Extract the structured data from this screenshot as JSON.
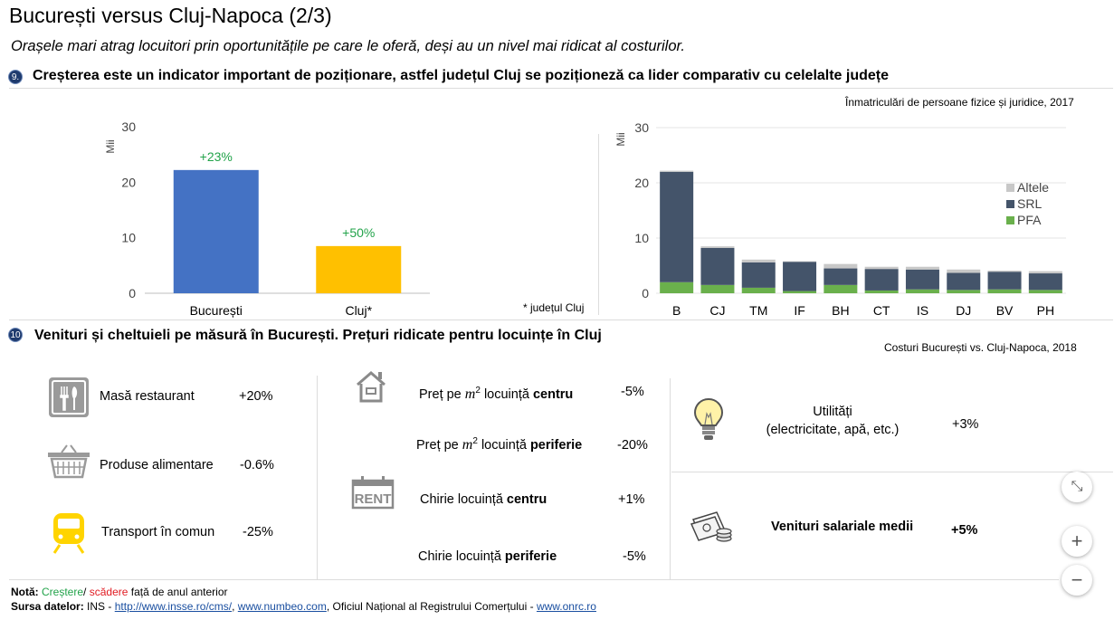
{
  "title": "București versus Cluj-Napoca (2/3)",
  "subtitle": "Orașele mari atrag locuitori prin oportunitățile pe care le oferă, deși au un nivel mai ridicat al costurilor.",
  "section9": {
    "badge": "9.",
    "heading": "Creșterea este un indicator important de poziționare, astfel județul Cluj se poziționeză ca lider comparativ cu celelalte județe",
    "source_note": "Înmatriculări de persoane fizice și juridice, 2017",
    "footnote": "* județul Cluj"
  },
  "chart_data": [
    {
      "type": "bar",
      "ylabel": "Mii",
      "ylim": [
        0,
        30
      ],
      "yticks": [
        "0",
        "10",
        "20",
        "30"
      ],
      "categories": [
        "București",
        "Cluj*"
      ],
      "values": [
        22.2,
        8.5
      ],
      "data_labels": [
        "+23%",
        "+50%"
      ],
      "colors": [
        "#4472c4",
        "#ffc000"
      ],
      "label_color": "#22a34a"
    },
    {
      "type": "bar",
      "stacked": true,
      "ylabel": "Mii",
      "ylim": [
        0,
        30
      ],
      "yticks": [
        "0",
        "10",
        "20",
        "30"
      ],
      "categories": [
        "B",
        "CJ",
        "TM",
        "IF",
        "BH",
        "CT",
        "IS",
        "DJ",
        "BV",
        "PH"
      ],
      "series": [
        {
          "name": "PFA",
          "color": "#6ab04c",
          "values": [
            2.0,
            1.5,
            1.0,
            0.4,
            1.5,
            0.5,
            0.7,
            0.6,
            0.7,
            0.6
          ]
        },
        {
          "name": "SRL",
          "color": "#44546a",
          "values": [
            20.0,
            6.7,
            4.6,
            5.3,
            3.0,
            3.9,
            3.6,
            3.1,
            3.2,
            3.0
          ]
        },
        {
          "name": "Altele",
          "color": "#c8c8c8",
          "values": [
            0.2,
            0.3,
            0.5,
            0.1,
            0.8,
            0.4,
            0.5,
            0.6,
            0.2,
            0.4
          ]
        }
      ],
      "legend": [
        "Altele",
        "SRL",
        "PFA"
      ],
      "legend_position": "right",
      "grid": true
    }
  ],
  "section10": {
    "badge": "10",
    "heading": "Venituri și cheltuieli pe măsură în București. Prețuri ridicate pentru locuințe în Cluj",
    "source_note": "Costuri București vs. Cluj-Napoca, 2018"
  },
  "costs": {
    "restaurant": {
      "icon": "restaurant-icon",
      "label": "Masă restaurant",
      "value": "+20%"
    },
    "food": {
      "icon": "basket-icon",
      "label": "Produse alimentare",
      "value": "-0.6%"
    },
    "transport": {
      "icon": "train-icon",
      "label": "Transport în comun",
      "value": "-25%"
    },
    "price_center": {
      "icon": "house-icon",
      "pre": "Preț pe",
      "unit": "m",
      "sup": "2",
      "mid": "locuință",
      "bold": "centru",
      "value": "-5%"
    },
    "price_periphery": {
      "pre": "Preț pe",
      "unit": "m",
      "sup": "2",
      "mid": "locuință",
      "bold": "periferie",
      "value": "-20%"
    },
    "rent_center": {
      "icon": "rent-icon",
      "icon_text": "RENT",
      "pre": "Chirie locuință",
      "bold": "centru",
      "value": "+1%"
    },
    "rent_periphery": {
      "pre": "Chirie locuință",
      "bold": "periferie",
      "value": "-5%"
    },
    "utilities": {
      "icon": "lightbulb-icon",
      "line1": "Utilități",
      "line2": "(electricitate, apă, etc.)",
      "value": "+3%"
    },
    "salary": {
      "icon": "money-icon",
      "label": "Venituri salariale medii",
      "value": "+5%"
    }
  },
  "notes": {
    "nota_label": "Notă:",
    "crestere": "Creștere",
    "slash": "/",
    "scadere": "scădere",
    "rest": "față de anul anterior",
    "sursa_label": "Sursa datelor:",
    "ins": "INS -",
    "link1": "http://www.insse.ro/cms/",
    "comma": ",",
    "link2": "www.numbeo.com",
    "onrc": ", Oficiul Național al Registrului Comerțului -",
    "link3": "www.onrc.ro"
  },
  "controls": {
    "collapse": "⤡",
    "zoom_in": "+",
    "zoom_out": "−"
  }
}
